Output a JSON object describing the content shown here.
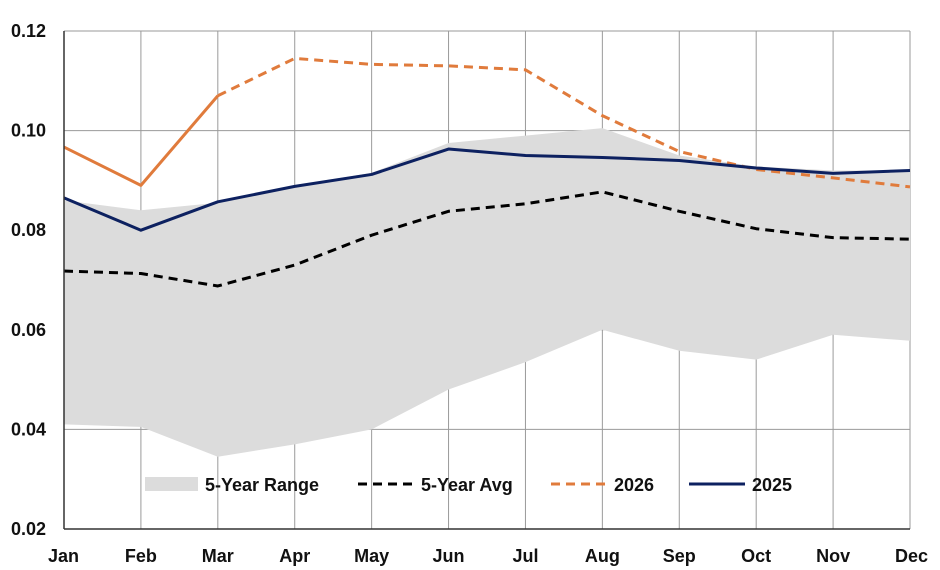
{
  "chart_data": {
    "type": "line",
    "title": "",
    "xlabel": "",
    "ylabel": "",
    "categories": [
      "Jan",
      "Feb",
      "Mar",
      "Apr",
      "May",
      "Jun",
      "Jul",
      "Aug",
      "Sep",
      "Oct",
      "Nov",
      "Dec"
    ],
    "ylim": [
      0.02,
      0.12
    ],
    "yticks": [
      "0.02",
      "0.04",
      "0.06",
      "0.08",
      "0.10",
      "0.12"
    ],
    "grid": true,
    "legend_placement": "bottom-center",
    "range": {
      "name": "5-Year Range",
      "color": "#dcdcdc",
      "low": [
        0.041,
        0.0405,
        0.0345,
        0.037,
        0.04,
        0.048,
        0.0535,
        0.06,
        0.0558,
        0.054,
        0.059,
        0.0578
      ],
      "high": [
        0.086,
        0.084,
        0.0855,
        0.089,
        0.0915,
        0.0975,
        0.099,
        0.1005,
        0.095,
        0.0928,
        0.092,
        0.092
      ]
    },
    "series": [
      {
        "name": "5-Year Avg",
        "color": "#000000",
        "style": "dashed",
        "values": [
          0.0718,
          0.0713,
          0.0688,
          0.073,
          0.079,
          0.0838,
          0.0853,
          0.0877,
          0.0838,
          0.0803,
          0.0785,
          0.0782
        ]
      },
      {
        "name": "2026",
        "color": "#e07b3c",
        "style": "solid-then-dashed",
        "solid_until_index": 2,
        "values": [
          0.0967,
          0.089,
          0.107,
          0.1145,
          0.1133,
          0.113,
          0.1122,
          0.103,
          0.0958,
          0.0922,
          0.0905,
          0.0887
        ]
      },
      {
        "name": "2025",
        "color": "#0d2160",
        "style": "solid",
        "values": [
          0.0865,
          0.08,
          0.0857,
          0.0888,
          0.0912,
          0.0963,
          0.095,
          0.0946,
          0.094,
          0.0925,
          0.0914,
          0.092
        ]
      }
    ]
  }
}
